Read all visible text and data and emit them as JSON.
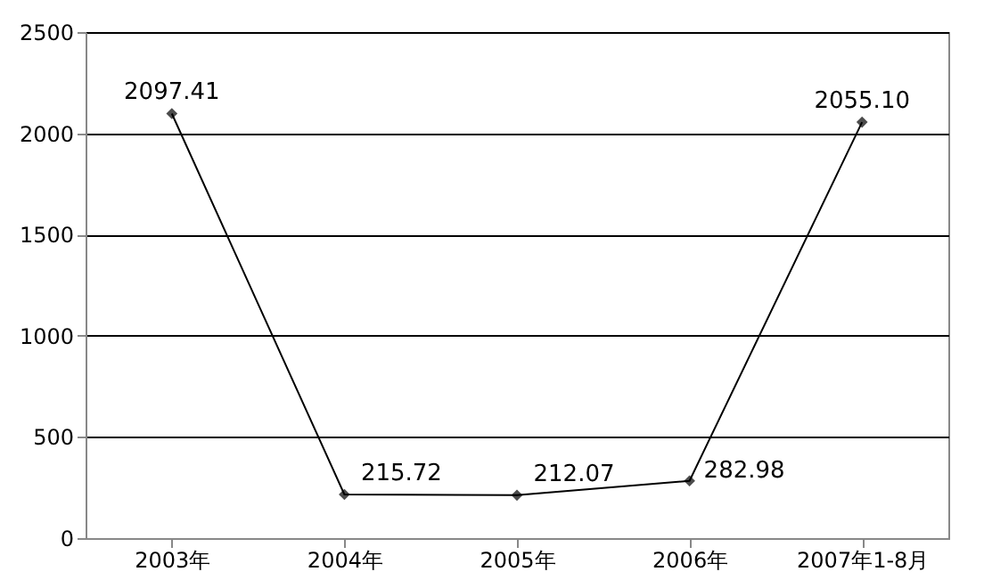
{
  "chart_data": {
    "type": "line",
    "categories": [
      "2003年",
      "2004年",
      "2005年",
      "2006年",
      "2007年1-8月"
    ],
    "series": [
      {
        "color": "#000000",
        "values": [
          2097.41,
          215.72,
          212.07,
          282.98,
          2055.1
        ]
      }
    ],
    "value_labels": [
      "2097.41",
      "215.72",
      "212.07",
      "282.98",
      "2055.10"
    ],
    "ylim": [
      0,
      2500
    ],
    "yticks": [
      0,
      500,
      1000,
      1500,
      2000,
      2500
    ],
    "grid": "y",
    "marker": "diamond",
    "line_style": "solid"
  }
}
